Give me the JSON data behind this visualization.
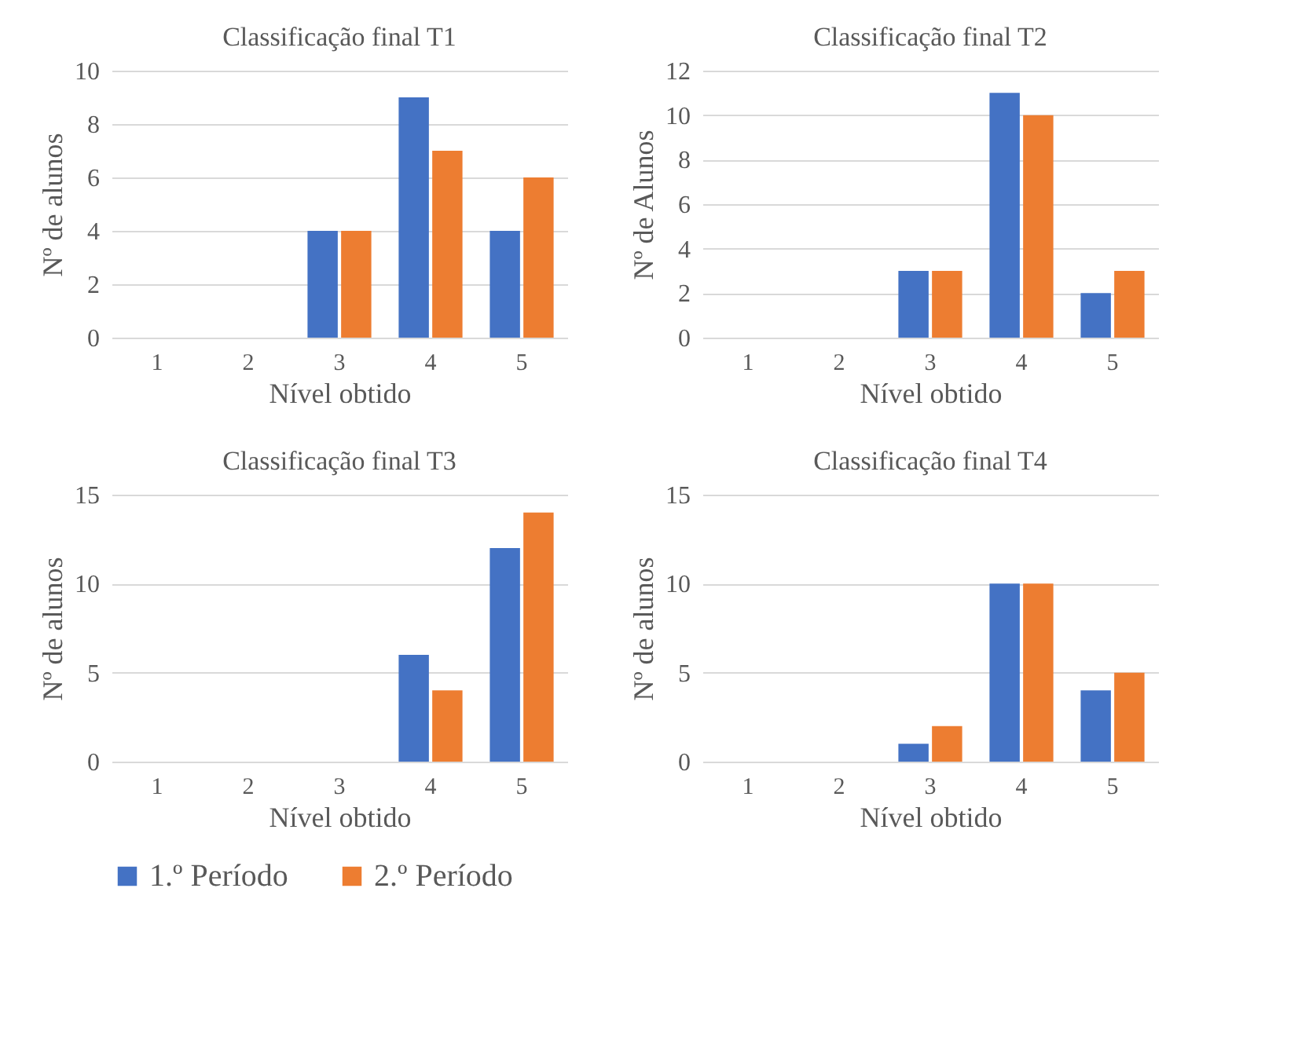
{
  "chart_data": [
    {
      "type": "bar",
      "title": "Classificação  final T1",
      "xlabel": "Nível obtido",
      "ylabel": "Nº de alunos",
      "categories": [
        "1",
        "2",
        "3",
        "4",
        "5"
      ],
      "ylim": [
        0,
        10
      ],
      "yticks": [
        0,
        2,
        4,
        6,
        8,
        10
      ],
      "grid": "y",
      "legend": "bottom",
      "series": [
        {
          "name": "1.º Período",
          "color": "#4472c4",
          "values": [
            0,
            0,
            4,
            9,
            4
          ]
        },
        {
          "name": "2.º Período",
          "color": "#ed7d31",
          "values": [
            0,
            0,
            4,
            7,
            6
          ]
        }
      ]
    },
    {
      "type": "bar",
      "title": "Classificação  final T2",
      "xlabel": "Nível obtido",
      "ylabel": "Nº de Alunos",
      "categories": [
        "1",
        "2",
        "3",
        "4",
        "5"
      ],
      "ylim": [
        0,
        12
      ],
      "yticks": [
        0,
        2,
        4,
        6,
        8,
        10,
        12
      ],
      "grid": "y",
      "legend": "bottom",
      "series": [
        {
          "name": "1.º Período",
          "color": "#4472c4",
          "values": [
            0,
            0,
            3,
            11,
            2
          ]
        },
        {
          "name": "2.º Período",
          "color": "#ed7d31",
          "values": [
            0,
            0,
            3,
            10,
            3
          ]
        }
      ]
    },
    {
      "type": "bar",
      "title": "Classificação  final T3",
      "xlabel": "Nível obtido",
      "ylabel": "Nº de alunos",
      "categories": [
        "1",
        "2",
        "3",
        "4",
        "5"
      ],
      "ylim": [
        0,
        15
      ],
      "yticks": [
        0,
        5,
        10,
        15
      ],
      "grid": "y",
      "legend": "bottom",
      "series": [
        {
          "name": "1.º Período",
          "color": "#4472c4",
          "values": [
            0,
            0,
            0,
            6,
            12
          ]
        },
        {
          "name": "2.º Período",
          "color": "#ed7d31",
          "values": [
            0,
            0,
            0,
            4,
            14
          ]
        }
      ]
    },
    {
      "type": "bar",
      "title": "Classificação  final T4",
      "xlabel": "Nível obtido",
      "ylabel": "Nº de alunos",
      "categories": [
        "1",
        "2",
        "3",
        "4",
        "5"
      ],
      "ylim": [
        0,
        15
      ],
      "yticks": [
        0,
        5,
        10,
        15
      ],
      "grid": "y",
      "legend": "bottom",
      "series": [
        {
          "name": "1.º Período",
          "color": "#4472c4",
          "values": [
            0,
            0,
            1,
            10,
            4
          ]
        },
        {
          "name": "2.º Período",
          "color": "#ed7d31",
          "values": [
            0,
            0,
            2,
            10,
            5
          ]
        }
      ]
    }
  ]
}
